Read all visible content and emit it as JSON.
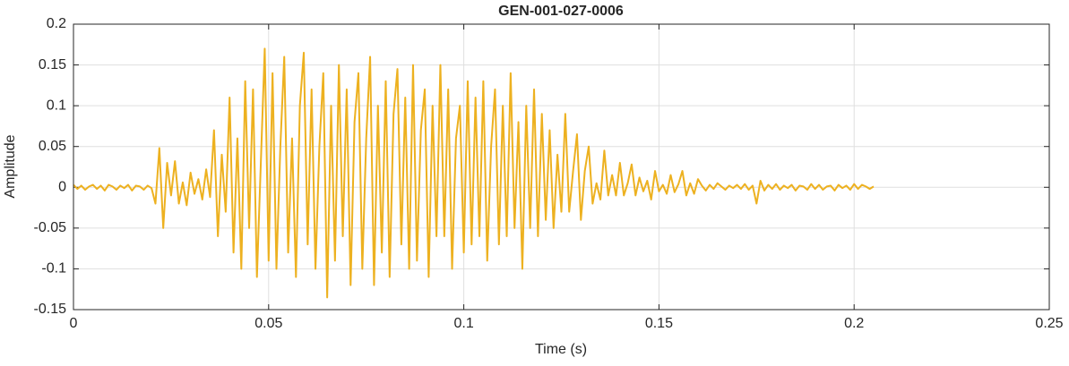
{
  "chart_data": {
    "type": "line",
    "title": "GEN-001-027-0006",
    "xlabel": "Time (s)",
    "ylabel": "Amplitude",
    "x": [
      0,
      0.001,
      0.002,
      0.003,
      0.004,
      0.005,
      0.006,
      0.007,
      0.008,
      0.009,
      0.01,
      0.011,
      0.012,
      0.013,
      0.014,
      0.015,
      0.016,
      0.017,
      0.018,
      0.019,
      0.02,
      0.021,
      0.022,
      0.023,
      0.024,
      0.025,
      0.026,
      0.027,
      0.028,
      0.029,
      0.03,
      0.031,
      0.032,
      0.033,
      0.034,
      0.035,
      0.036,
      0.037,
      0.038,
      0.039,
      0.04,
      0.041,
      0.042,
      0.043,
      0.044,
      0.045,
      0.046,
      0.047,
      0.048,
      0.049,
      0.05,
      0.051,
      0.052,
      0.053,
      0.054,
      0.055,
      0.056,
      0.057,
      0.058,
      0.059,
      0.06,
      0.061,
      0.062,
      0.063,
      0.064,
      0.065,
      0.066,
      0.067,
      0.068,
      0.069,
      0.07,
      0.071,
      0.072,
      0.073,
      0.074,
      0.075,
      0.076,
      0.077,
      0.078,
      0.079,
      0.08,
      0.081,
      0.082,
      0.083,
      0.084,
      0.085,
      0.086,
      0.087,
      0.088,
      0.089,
      0.09,
      0.091,
      0.092,
      0.093,
      0.094,
      0.095,
      0.096,
      0.097,
      0.098,
      0.099,
      0.1,
      0.101,
      0.102,
      0.103,
      0.104,
      0.105,
      0.106,
      0.107,
      0.108,
      0.109,
      0.11,
      0.111,
      0.112,
      0.113,
      0.114,
      0.115,
      0.116,
      0.117,
      0.118,
      0.119,
      0.12,
      0.121,
      0.122,
      0.123,
      0.124,
      0.125,
      0.126,
      0.127,
      0.128,
      0.129,
      0.13,
      0.131,
      0.132,
      0.133,
      0.134,
      0.135,
      0.136,
      0.137,
      0.138,
      0.139,
      0.14,
      0.141,
      0.142,
      0.143,
      0.144,
      0.145,
      0.146,
      0.147,
      0.148,
      0.149,
      0.15,
      0.151,
      0.152,
      0.153,
      0.154,
      0.155,
      0.156,
      0.157,
      0.158,
      0.159,
      0.16,
      0.161,
      0.162,
      0.163,
      0.164,
      0.165,
      0.166,
      0.167,
      0.168,
      0.169,
      0.17,
      0.171,
      0.172,
      0.173,
      0.174,
      0.175,
      0.176,
      0.177,
      0.178,
      0.179,
      0.18,
      0.181,
      0.182,
      0.183,
      0.184,
      0.185,
      0.186,
      0.187,
      0.188,
      0.189,
      0.19,
      0.191,
      0.192,
      0.193,
      0.194,
      0.195,
      0.196,
      0.197,
      0.198,
      0.199,
      0.2,
      0.201,
      0.202,
      0.203,
      0.204,
      0.205
    ],
    "series": [
      {
        "color": "#EDB120",
        "values": [
          0.003,
          -0.002,
          0.002,
          -0.003,
          0.001,
          0.003,
          -0.002,
          0.002,
          -0.004,
          0.003,
          0.001,
          -0.003,
          0.002,
          -0.001,
          0.003,
          -0.004,
          0.002,
          0.001,
          -0.003,
          0.002,
          -0.001,
          -0.02,
          0.048,
          -0.05,
          0.03,
          -0.01,
          0.032,
          -0.02,
          0.006,
          -0.022,
          0.018,
          -0.008,
          0.01,
          -0.015,
          0.022,
          -0.012,
          0.07,
          -0.06,
          0.04,
          -0.03,
          0.11,
          -0.08,
          0.06,
          -0.1,
          0.13,
          -0.05,
          0.12,
          -0.11,
          0.03,
          0.17,
          -0.09,
          0.14,
          -0.1,
          0.05,
          0.16,
          -0.08,
          0.06,
          -0.11,
          0.1,
          0.165,
          -0.07,
          0.12,
          -0.1,
          0.05,
          0.14,
          -0.135,
          0.1,
          -0.09,
          0.15,
          -0.06,
          0.12,
          -0.12,
          0.08,
          0.14,
          -0.1,
          0.06,
          0.16,
          -0.12,
          0.1,
          -0.08,
          0.13,
          -0.11,
          0.09,
          0.145,
          -0.07,
          0.11,
          -0.1,
          0.15,
          -0.09,
          0.07,
          0.12,
          -0.11,
          0.1,
          -0.06,
          0.15,
          -0.06,
          0.12,
          -0.1,
          0.06,
          0.1,
          -0.08,
          0.13,
          -0.07,
          0.11,
          -0.06,
          0.13,
          -0.09,
          0.05,
          0.12,
          -0.07,
          0.1,
          -0.06,
          0.14,
          -0.05,
          0.08,
          -0.1,
          0.1,
          -0.05,
          0.12,
          -0.06,
          0.09,
          -0.04,
          0.07,
          -0.05,
          0.04,
          -0.03,
          0.09,
          -0.03,
          0.02,
          0.065,
          -0.04,
          0.02,
          0.05,
          -0.02,
          0.005,
          -0.015,
          0.045,
          -0.01,
          0.015,
          -0.01,
          0.03,
          -0.01,
          0.005,
          0.028,
          -0.01,
          0.012,
          -0.005,
          0.008,
          -0.015,
          0.02,
          -0.005,
          0.003,
          -0.008,
          0.015,
          -0.006,
          0.004,
          0.02,
          -0.01,
          0.005,
          -0.008,
          0.01,
          0.002,
          -0.004,
          0.003,
          -0.002,
          0.005,
          0.001,
          -0.003,
          0.002,
          -0.001,
          0.003,
          -0.002,
          0.004,
          -0.003,
          0.002,
          -0.02,
          0.008,
          -0.004,
          0.003,
          -0.002,
          0.004,
          -0.003,
          0.002,
          -0.001,
          0.003,
          -0.004,
          0.002,
          0.001,
          -0.003,
          0.004,
          -0.002,
          0.003,
          -0.003,
          0.001,
          0.002,
          -0.004,
          0.003,
          -0.001,
          0.002,
          -0.003,
          0.004,
          -0.002,
          0.003,
          0.001,
          -0.002,
          0.001
        ]
      }
    ],
    "xlim": [
      0,
      0.25
    ],
    "xticks": [
      0,
      0.05,
      0.1,
      0.15,
      0.2,
      0.25
    ],
    "ylim": [
      -0.15,
      0.2
    ],
    "yticks": [
      -0.15,
      -0.1,
      -0.05,
      0,
      0.05,
      0.1,
      0.15,
      0.2
    ],
    "grid": true
  }
}
